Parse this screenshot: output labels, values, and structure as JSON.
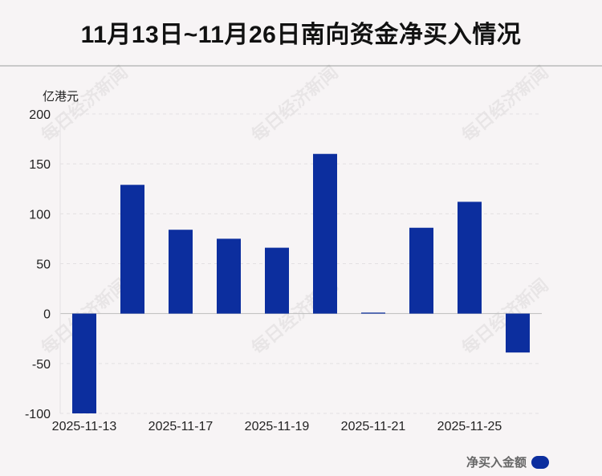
{
  "title": "11月13日~11月26日南向资金净买入情况",
  "chart_data": {
    "type": "bar",
    "unit_label": "亿港元",
    "ylim": [
      -100,
      200
    ],
    "yticks": [
      200,
      150,
      100,
      50,
      0,
      -50,
      -100
    ],
    "xtick_labels": [
      "2025-11-13",
      "2025-11-17",
      "2025-11-19",
      "2025-11-21",
      "2025-11-25"
    ],
    "xtick_indices": [
      0,
      2,
      4,
      6,
      8
    ],
    "categories": [
      "2025-11-13",
      "2025-11-14",
      "2025-11-17",
      "2025-11-18",
      "2025-11-19",
      "2025-11-20",
      "2025-11-21",
      "2025-11-24",
      "2025-11-25",
      "2025-11-26"
    ],
    "series": [
      {
        "name": "净买入金额",
        "values": [
          -100,
          129,
          84,
          75,
          66,
          160,
          1,
          86,
          112,
          -39
        ]
      }
    ],
    "bar_color": "#0c2e9e",
    "grid": true,
    "legend_position": "bottom-right"
  },
  "watermark": "每日经济新闻"
}
